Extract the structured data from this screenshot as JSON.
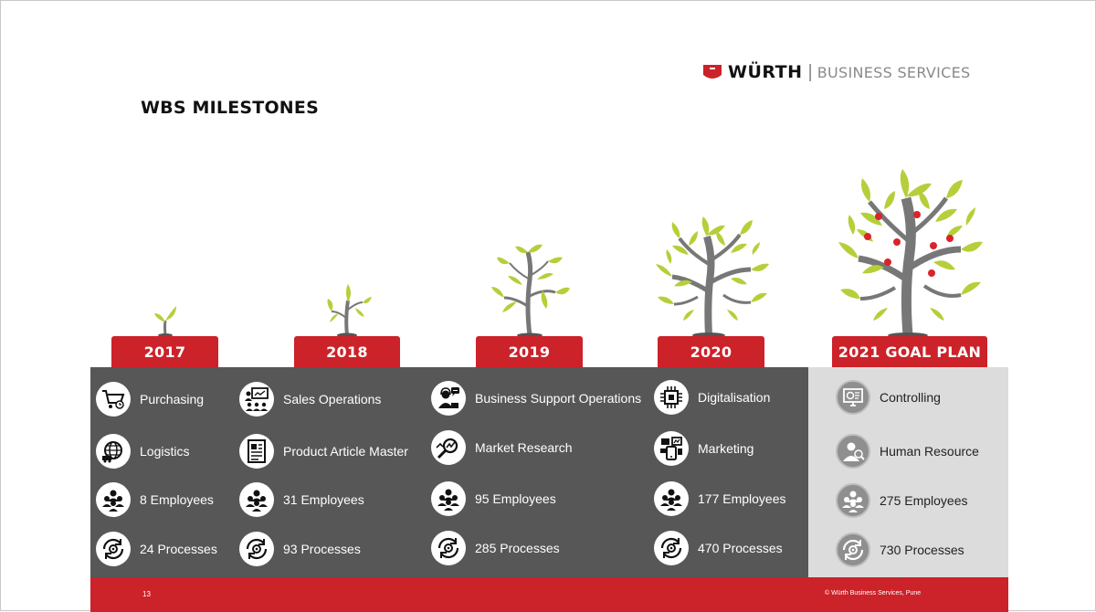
{
  "header": {
    "title": "WBS MILESTONES"
  },
  "logo": {
    "brand": "WÜRTH",
    "divider": "|",
    "sub": "BUSINESS SERVICES"
  },
  "years": [
    "2017",
    "2018",
    "2019",
    "2020",
    "2021 GOAL PLAN"
  ],
  "columns": [
    {
      "items": [
        {
          "icon": "shopping-cart-icon",
          "label": "Purchasing"
        },
        {
          "icon": "globe-truck-icon",
          "label": "Logistics"
        },
        {
          "icon": "people-group-icon",
          "label": "8 Employees"
        },
        {
          "icon": "process-cycle-icon",
          "label": "24 Processes"
        }
      ]
    },
    {
      "items": [
        {
          "icon": "presentation-icon",
          "label": "Sales Operations"
        },
        {
          "icon": "document-icon",
          "label": "Product Article Master"
        },
        {
          "icon": "people-group-icon",
          "label": "31 Employees"
        },
        {
          "icon": "process-cycle-icon",
          "label": "93 Processes"
        }
      ]
    },
    {
      "items": [
        {
          "icon": "support-agent-icon",
          "label": "Business Support Operations"
        },
        {
          "icon": "magnifier-chart-icon",
          "label": "Market Research"
        },
        {
          "icon": "people-group-icon",
          "label": "95 Employees"
        },
        {
          "icon": "process-cycle-icon",
          "label": "285 Processes"
        }
      ]
    },
    {
      "items": [
        {
          "icon": "circuit-chip-icon",
          "label": "Digitalisation"
        },
        {
          "icon": "marketing-devices-icon",
          "label": "Marketing"
        },
        {
          "icon": "people-group-icon",
          "label": "177 Employees"
        },
        {
          "icon": "process-cycle-icon",
          "label": "470 Processes"
        }
      ]
    },
    {
      "items": [
        {
          "icon": "controlling-monitor-icon",
          "label": "Controlling"
        },
        {
          "icon": "human-resource-icon",
          "label": "Human Resource"
        },
        {
          "icon": "people-group-icon",
          "label": "275 Employees"
        },
        {
          "icon": "process-gear-icon",
          "label": "730 Processes"
        }
      ]
    }
  ],
  "footer": {
    "page": "13",
    "copyright": "© Würth Business Services, Pune"
  },
  "colors": {
    "accent": "#cc2229",
    "panel_dark": "#575757",
    "panel_light": "#dcdcdc",
    "leaf": "#b5cf3a",
    "trunk": "#777777",
    "fruit": "#d8242b"
  }
}
